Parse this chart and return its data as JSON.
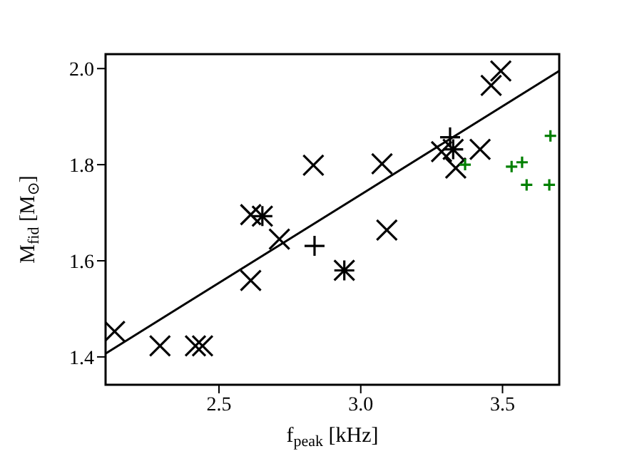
{
  "chart_data": {
    "type": "scatter",
    "xlabel": "f$_{peak}$ [kHz]",
    "ylabel": "M$_{fid}$ [M$_{⊙}$]",
    "xlim": [
      2.1,
      3.7
    ],
    "ylim": [
      1.342,
      2.03
    ],
    "xticks": [
      2.5,
      {
        "value": 3,
        "label": "3.0"
      },
      3.5
    ],
    "yticks": [
      1.4,
      1.6,
      1.8,
      {
        "value": 2,
        "label": "2.0"
      }
    ],
    "series": [
      {
        "marker": "cross",
        "color": "#000000",
        "x": [
          2.132,
          2.292,
          2.417,
          2.442,
          2.612,
          2.612,
          2.653,
          2.713,
          2.833,
          2.942,
          3.075,
          3.092,
          3.285,
          3.326,
          3.335,
          3.421,
          3.46,
          3.494
        ],
        "values": [
          1.453,
          1.423,
          1.423,
          1.423,
          1.696,
          1.559,
          1.693,
          1.645,
          1.799,
          1.58,
          1.802,
          1.664,
          1.827,
          1.832,
          1.793,
          1.832,
          1.965,
          1.995
        ]
      },
      {
        "marker": "plus",
        "color": "#000000",
        "x": [
          2.653,
          2.837,
          2.942,
          3.315,
          3.326
        ],
        "values": [
          1.693,
          1.631,
          1.58,
          1.857,
          1.832
        ]
      },
      {
        "marker": "plus",
        "color": "#008000",
        "x": [
          3.368,
          3.532,
          3.569,
          3.585,
          3.665,
          3.669
        ],
        "values": [
          1.8,
          1.796,
          1.805,
          1.758,
          1.758,
          1.86
        ]
      },
      {
        "type": "line",
        "color": "#000000",
        "x": [
          2.1,
          3.7
        ],
        "values": [
          1.407,
          1.995
        ]
      }
    ]
  }
}
